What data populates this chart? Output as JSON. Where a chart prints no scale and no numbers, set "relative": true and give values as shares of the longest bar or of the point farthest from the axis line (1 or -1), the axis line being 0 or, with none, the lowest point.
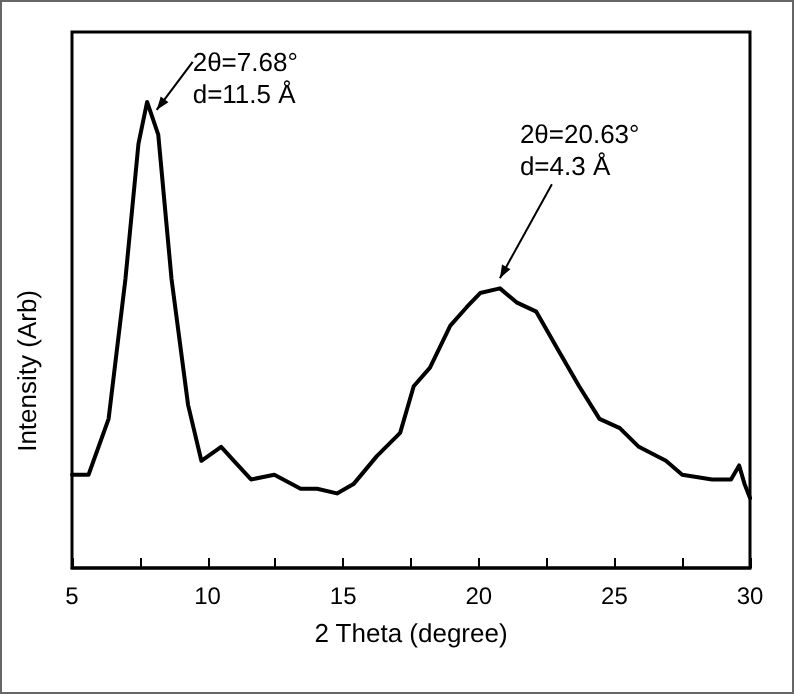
{
  "chart_data": {
    "type": "line",
    "relative": true,
    "xlabel": "2 Theta (degree)",
    "ylabel": "Intensity (Arb)",
    "xlim": [
      5,
      30
    ],
    "xticks": [
      5,
      {
        "value": 7.5,
        "label": null
      },
      10,
      {
        "value": 12.5,
        "label": null
      },
      15,
      {
        "value": 17.5,
        "label": null
      },
      20,
      {
        "value": 22.5,
        "label": null
      },
      25,
      {
        "value": 27.5,
        "label": null
      },
      30
    ],
    "grid": false,
    "marker": "none",
    "line_style": "solid",
    "annotations": [
      {
        "text": "2θ=7.68°\nd=11.5 Å",
        "x": 7.68,
        "y": 1.0
      },
      {
        "text": "2θ=20.63°\nd=4.3 Å",
        "x": 20.63,
        "y": 0.6
      }
    ],
    "series": [
      {
        "color": "#000000",
        "x": [
          5.0,
          5.61,
          6.35,
          6.97,
          7.45,
          7.77,
          8.18,
          8.67,
          9.28,
          9.77,
          10.5,
          10.97,
          11.6,
          12.46,
          13.43,
          14.04,
          14.77,
          15.38,
          16.24,
          17.1,
          17.6,
          18.2,
          18.95,
          19.56,
          20.05,
          20.78,
          21.39,
          22.12,
          23.0,
          23.7,
          24.45,
          25.2,
          25.9,
          26.9,
          27.5,
          28.6,
          29.3,
          29.6,
          29.8,
          30.0
        ],
        "values": [
          0.2,
          0.2,
          0.32,
          0.62,
          0.91,
          1.0,
          0.93,
          0.62,
          0.35,
          0.23,
          0.26,
          0.23,
          0.19,
          0.2,
          0.17,
          0.17,
          0.16,
          0.18,
          0.24,
          0.29,
          0.39,
          0.43,
          0.52,
          0.56,
          0.59,
          0.6,
          0.57,
          0.55,
          0.46,
          0.39,
          0.32,
          0.3,
          0.26,
          0.23,
          0.2,
          0.19,
          0.19,
          0.22,
          0.18,
          0.15
        ]
      }
    ]
  }
}
